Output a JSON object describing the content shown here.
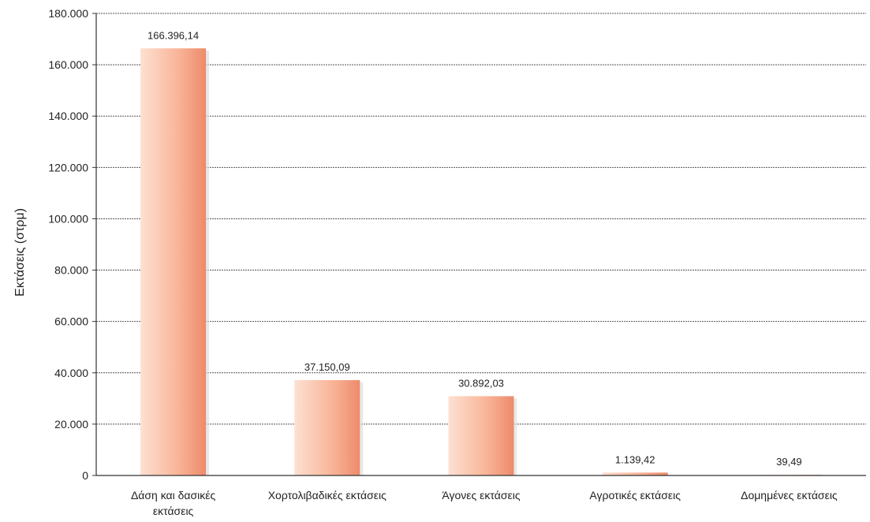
{
  "chart_data": {
    "type": "bar",
    "title": "",
    "xlabel": "",
    "ylabel": "Εκτάσεις (στρμ)",
    "ylim": [
      0,
      180000
    ],
    "yticks": [
      0,
      20000,
      40000,
      60000,
      80000,
      100000,
      120000,
      140000,
      160000,
      180000
    ],
    "ytick_labels": [
      "0",
      "20.000",
      "40.000",
      "60.000",
      "80.000",
      "100.000",
      "120.000",
      "140.000",
      "160.000",
      "180.000"
    ],
    "categories": [
      [
        "Δάση και δασικές",
        "εκτάσεις"
      ],
      [
        "Χορτολιβαδικές εκτάσεις"
      ],
      [
        "Άγονες εκτάσεις"
      ],
      [
        "Αγροτικές εκτάσεις"
      ],
      [
        "Δομημένες εκτάσεις"
      ]
    ],
    "values": [
      166396.14,
      37150.09,
      30892.03,
      1139.42,
      39.49
    ],
    "value_labels": [
      "166.396,14",
      "37.150,09",
      "30.892,03",
      "1.139,42",
      "39,49"
    ],
    "grid": true,
    "legend": "none",
    "colors": {
      "bar_light": "#fde0d2",
      "bar_mid": "#f9b79b",
      "bar_dark": "#ee8a6b",
      "grid": "#555555",
      "axis": "#333333"
    }
  }
}
